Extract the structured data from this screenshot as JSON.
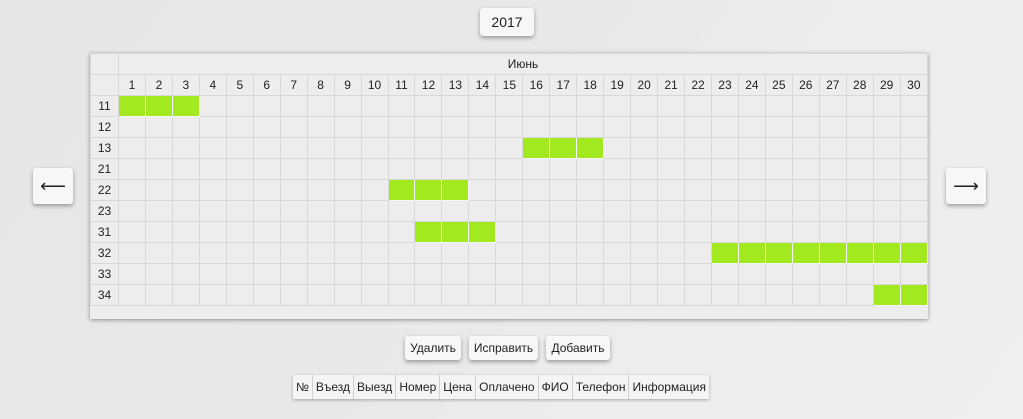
{
  "year": "2017",
  "nav": {
    "prev": "⟵",
    "next": "⟶"
  },
  "calendar": {
    "month": "Июнь",
    "days": [
      "1",
      "2",
      "3",
      "4",
      "5",
      "6",
      "7",
      "8",
      "9",
      "10",
      "11",
      "12",
      "13",
      "14",
      "15",
      "16",
      "17",
      "18",
      "19",
      "20",
      "21",
      "22",
      "23",
      "24",
      "25",
      "26",
      "27",
      "28",
      "29",
      "30"
    ],
    "rooms": [
      {
        "number": "11",
        "booked": [
          1,
          2,
          3
        ]
      },
      {
        "number": "12",
        "booked": []
      },
      {
        "number": "13",
        "booked": [
          16,
          17,
          18
        ]
      },
      {
        "number": "21",
        "booked": []
      },
      {
        "number": "22",
        "booked": [
          11,
          12,
          13
        ]
      },
      {
        "number": "23",
        "booked": []
      },
      {
        "number": "31",
        "booked": [
          12,
          13,
          14
        ]
      },
      {
        "number": "32",
        "booked": [
          23,
          24,
          25,
          26,
          27,
          28,
          29,
          30
        ]
      },
      {
        "number": "33",
        "booked": []
      },
      {
        "number": "34",
        "booked": [
          29,
          30
        ]
      }
    ],
    "booked_color": "#a2ea1f"
  },
  "actions": {
    "delete": "Удалить",
    "edit": "Исправить",
    "add": "Добавить"
  },
  "columns": [
    "№",
    "Въезд",
    "Выезд",
    "Номер",
    "Цена",
    "Оплачено",
    "ФИО",
    "Телефон",
    "Информация"
  ]
}
